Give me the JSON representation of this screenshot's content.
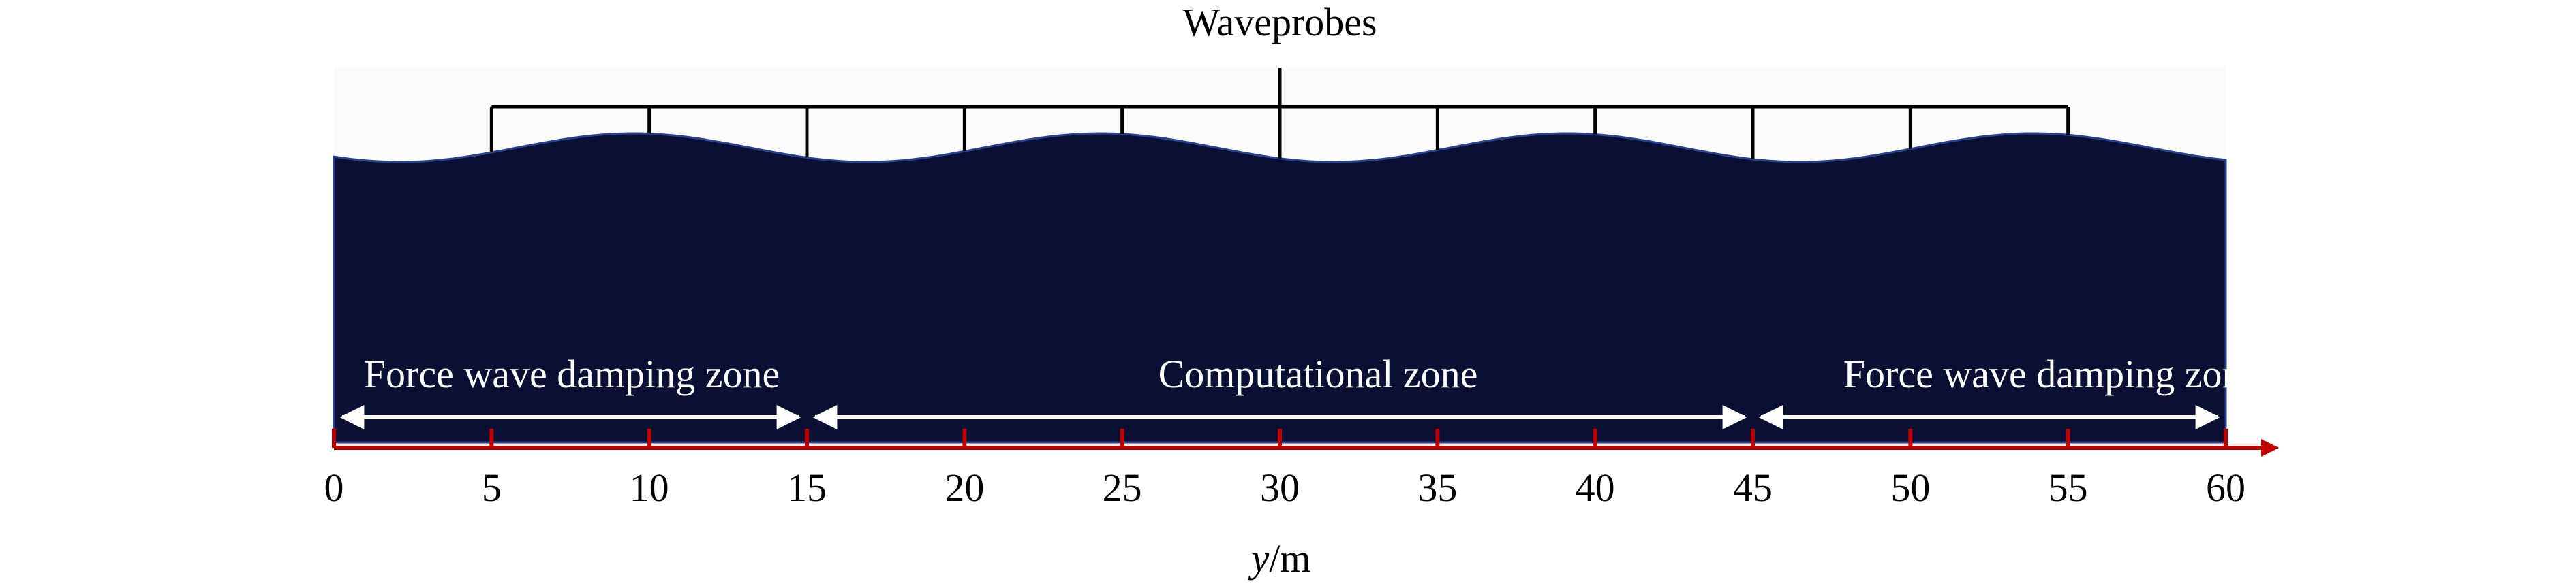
{
  "diagram": {
    "title": "Waveprobes",
    "axis": {
      "label_var": "y",
      "label_unit": "/m",
      "min": 0,
      "max": 60,
      "tick_step": 5,
      "tick_labels": [
        "0",
        "5",
        "10",
        "15",
        "20",
        "25",
        "30",
        "35",
        "40",
        "45",
        "50",
        "55",
        "60"
      ]
    },
    "zones": [
      {
        "label": "Force wave damping zone",
        "start": 0,
        "end": 15
      },
      {
        "label": "Computational zone",
        "start": 15,
        "end": 45
      },
      {
        "label": "Force wave damping zone",
        "start": 45,
        "end": 60
      }
    ],
    "probes": [
      5,
      10,
      15,
      20,
      25,
      30,
      35,
      40,
      45,
      50,
      55
    ],
    "colors": {
      "water": "#0a0f33",
      "air": "#fbfbfb",
      "axis": "#c00000",
      "probe": "#000000",
      "zone_arrow": "#ffffff",
      "zone_text": "#ffffff"
    }
  }
}
